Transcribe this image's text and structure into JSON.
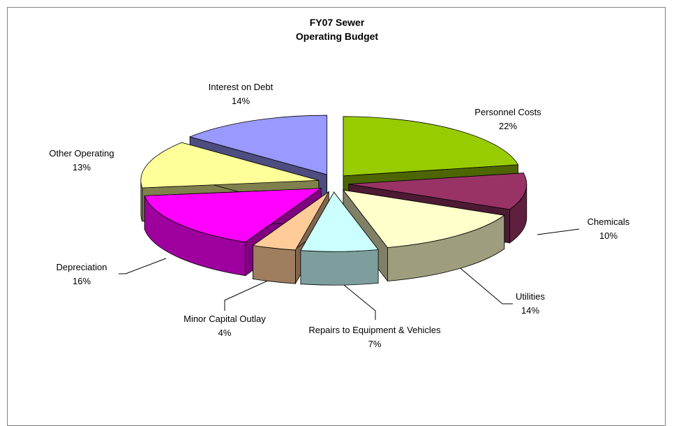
{
  "chart_data": {
    "type": "pie",
    "title": "FY07 Sewer Operating Budget",
    "categories": [
      "Personnel Costs",
      "Chemicals",
      "Utilities",
      "Repairs to Equipment & Vehicles",
      "Minor Capital Outlay",
      "Depreciation",
      "Other Operating",
      "Interest on Debt"
    ],
    "values": [
      22,
      10,
      14,
      7,
      4,
      16,
      13,
      14
    ],
    "value_labels": [
      "22%",
      "10%",
      "14%",
      "7%",
      "4%",
      "16%",
      "13%",
      "14%"
    ],
    "colors": [
      "#99cc00",
      "#993366",
      "#ffffcc",
      "#ccffff",
      "#ffcc99",
      "#ff00ff",
      "#ffff99",
      "#9999ff"
    ],
    "start_angle": 90,
    "direction": "clockwise",
    "style": "3d-exploded"
  }
}
